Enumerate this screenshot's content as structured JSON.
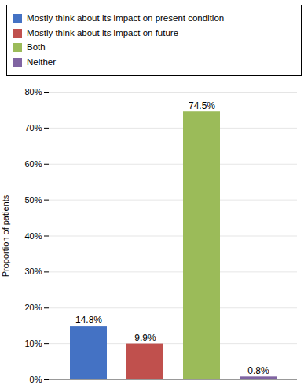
{
  "chart_data": {
    "type": "bar",
    "categories": [
      "Mostly think about its impact on present condition",
      "Mostly think about its impact on future",
      "Both",
      "Neither"
    ],
    "values": [
      14.8,
      9.9,
      74.5,
      0.8
    ],
    "value_labels": [
      "14.8%",
      "9.9%",
      "74.5%",
      "0.8%"
    ],
    "colors": [
      "#4472C4",
      "#C0504D",
      "#9BBB59",
      "#8064A2"
    ],
    "ylabel": "Proportion of patients",
    "ylim": [
      0,
      80
    ],
    "yticks": [
      {
        "value": 0,
        "label": "0%"
      },
      {
        "value": 10,
        "label": "10%"
      },
      {
        "value": 20,
        "label": "20%"
      },
      {
        "value": 30,
        "label": "30%"
      },
      {
        "value": 40,
        "label": "40%"
      },
      {
        "value": 50,
        "label": "50%"
      },
      {
        "value": 60,
        "label": "60%"
      },
      {
        "value": 70,
        "label": "70%"
      },
      {
        "value": 80,
        "label": "80%"
      }
    ],
    "grid": true,
    "legend": "top",
    "data_labels": true,
    "tick_labels": "y"
  }
}
